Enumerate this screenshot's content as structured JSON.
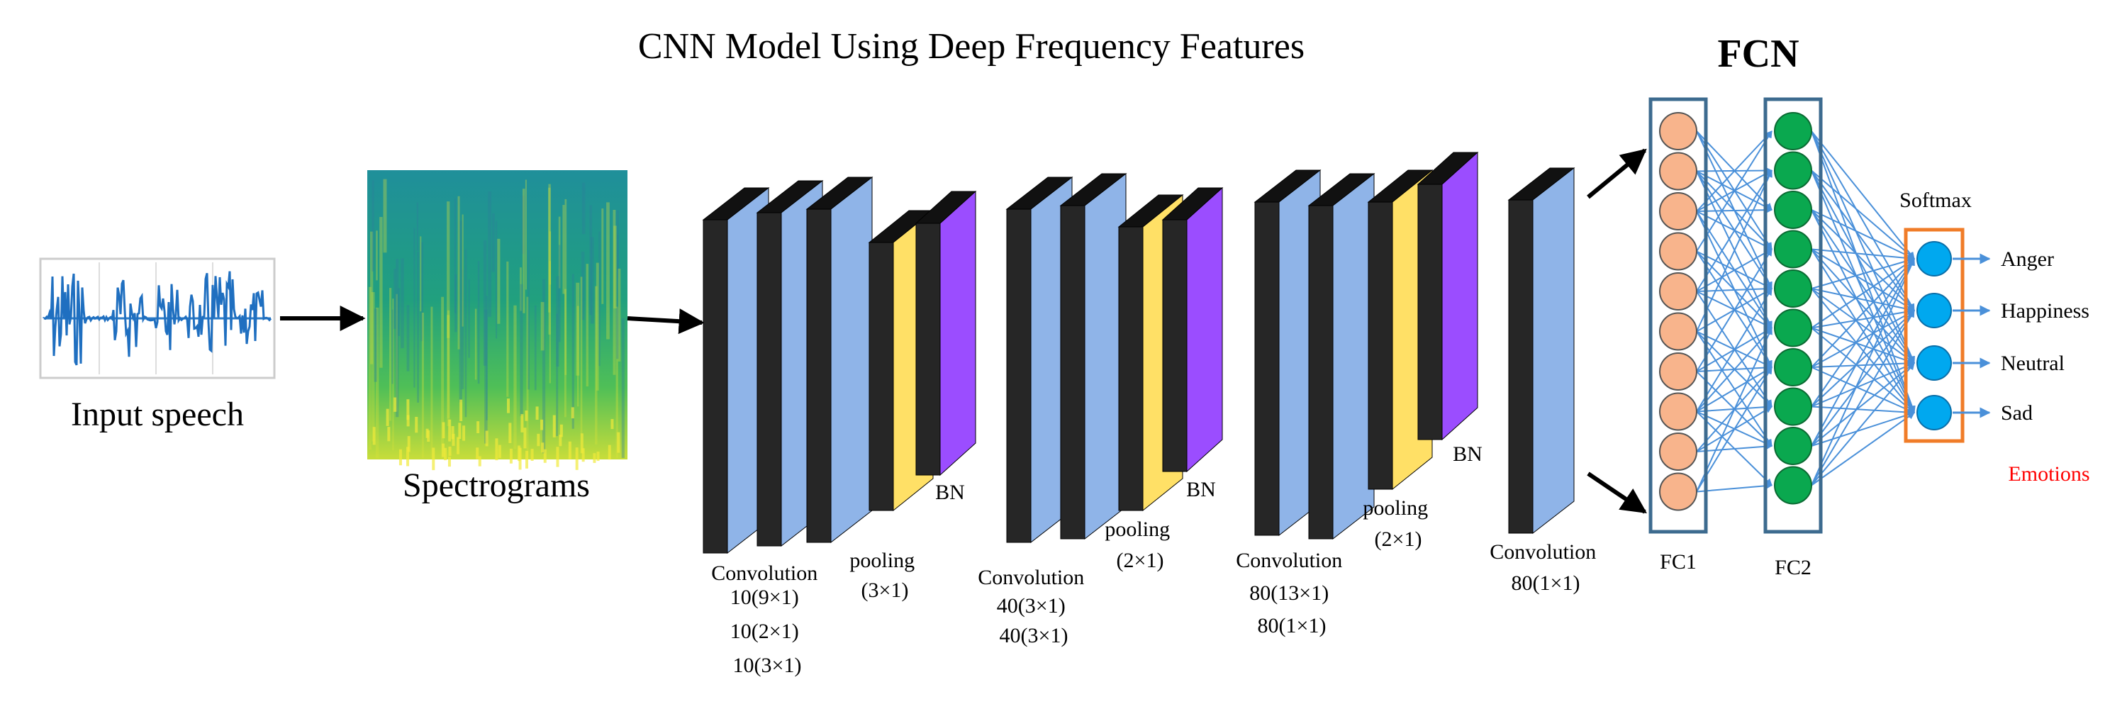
{
  "title": "CNN Model Using Deep Frequency Features",
  "fcn_title": "FCN",
  "input_label": "Input speech",
  "spectrogram_label": "Spectrograms",
  "cnn_groups": [
    {
      "lines": [
        "Convolution",
        "10(9×1)",
        "10(2×1)",
        "10(3×1)"
      ]
    },
    {
      "lines": [
        "pooling",
        "(3×1)"
      ]
    },
    {
      "lines": [
        "Convolution",
        "40(3×1)",
        "40(3×1)"
      ]
    },
    {
      "lines": [
        "pooling",
        "(2×1)"
      ]
    },
    {
      "lines": [
        "Convolution",
        "80(13×1)",
        "80(1×1)"
      ]
    },
    {
      "lines": [
        "pooling",
        "(2×1)"
      ]
    },
    {
      "lines": [
        "Convolution",
        "80(1×1)"
      ]
    }
  ],
  "bn_label": "BN",
  "fc1_label": "FC1",
  "fc2_label": "FC2",
  "softmax_label": "Softmax",
  "emotions_label": "Emotions",
  "emotions": [
    "Anger",
    "Happiness",
    "Neutral",
    "Sad"
  ],
  "colors": {
    "conv_face": "#8fb4e8",
    "conv_side": "#262626",
    "pool_face": "#ffe066",
    "bn_face": "#9b4dff",
    "fc1_node": "#f8b48c",
    "fc2_node": "#0aa84f",
    "softmax_node": "#00a8ef",
    "box_stroke": "#3d6b8f",
    "softmax_box": "#f07c28",
    "arrow_blue": "#4a90d9",
    "emotions_text": "#ff0000"
  }
}
